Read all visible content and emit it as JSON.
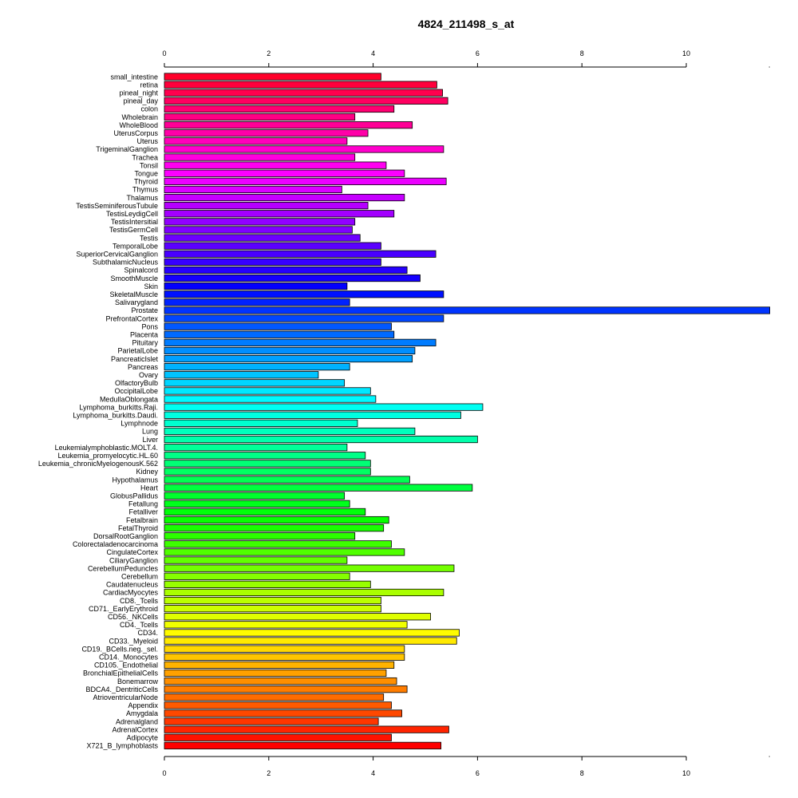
{
  "chart_data": {
    "type": "bar",
    "orientation": "horizontal",
    "title": "4824_211498_s_at",
    "xlabel": "",
    "ylabel": "",
    "xlim": [
      0,
      11.6
    ],
    "ticks": [
      "0",
      "2",
      "4",
      "6",
      "8",
      "10"
    ],
    "tick_values": [
      0,
      2,
      4,
      6,
      8,
      10
    ],
    "grid": false,
    "legend": "none",
    "categories": [
      "small_intestine",
      "retina",
      "pineal_night",
      "pineal_day",
      "colon",
      "Wholebrain",
      "WholeBlood",
      "UterusCorpus",
      "Uterus",
      "TrigeminalGanglion",
      "Trachea",
      "Tonsil",
      "Tongue",
      "Thyroid",
      "Thymus",
      "Thalamus",
      "TestisSeminiferousTubule",
      "TestisLeydigCell",
      "TestisIntersitial",
      "TestisGermCell",
      "Testis",
      "TemporalLobe",
      "SuperiorCervicalGanglion",
      "SubthalamicNucleus",
      "Spinalcord",
      "SmoothMuscle",
      "Skin",
      "SkeletalMuscle",
      "Salivarygland",
      "Prostate",
      "PrefrontalCortex",
      "Pons",
      "Placenta",
      "Pituitary",
      "ParietalLobe",
      "PancreaticIslet",
      "Pancreas",
      "Ovary",
      "OlfactoryBulb",
      "OccipitalLobe",
      "MedullaOblongata",
      "Lymphoma_burkitts.Raji.",
      "Lymphoma_burkitts.Daudi.",
      "Lymphnode",
      "Lung",
      "Liver",
      "Leukemialymphoblastic.MOLT.4.",
      "Leukemia_promyelocytic.HL.60",
      "Leukemia_chronicMyelogenousK.562",
      "Kidney",
      "Hypothalamus",
      "Heart",
      "GlobusPallidus",
      "Fetallung",
      "Fetalliver",
      "Fetalbrain",
      "FetalThyroid",
      "DorsalRootGanglion",
      "Colorectaladenocarcinoma",
      "CingulateCortex",
      "CiliaryGanglion",
      "CerebellumPeduncles",
      "Cerebellum",
      "Caudatenucleus",
      "CardiacMyocytes",
      "CD8._Tcells",
      "CD71._EarlyErythroid",
      "CD56._NKCells",
      "CD4._Tcells",
      "CD34.",
      "CD33._Myeloid",
      "CD19._BCells.neg._sel.",
      "CD14._Monocytes",
      "CD105._Endothelial",
      "BronchialEpithelialCells",
      "Bonemarrow",
      "BDCA4._DentriticCells",
      "AtrioventricularNode",
      "Appendix",
      "Amygdala",
      "Adrenalgland",
      "AdrenalCortex",
      "Adipocyte",
      "X721_B_lymphoblasts"
    ],
    "values": [
      4.15,
      5.22,
      5.33,
      5.43,
      4.4,
      3.65,
      4.75,
      3.9,
      3.5,
      5.35,
      3.65,
      4.25,
      4.6,
      5.4,
      3.4,
      4.6,
      3.9,
      4.4,
      3.65,
      3.6,
      3.75,
      4.15,
      5.2,
      4.15,
      4.65,
      4.9,
      3.5,
      5.35,
      3.55,
      11.6,
      5.35,
      4.35,
      4.4,
      5.2,
      4.8,
      4.75,
      3.55,
      2.95,
      3.45,
      3.95,
      4.05,
      6.1,
      5.68,
      3.7,
      4.8,
      6.0,
      3.5,
      3.85,
      3.95,
      3.95,
      4.7,
      5.9,
      3.45,
      3.55,
      3.85,
      4.3,
      4.2,
      3.65,
      4.35,
      4.6,
      3.5,
      5.55,
      3.55,
      3.95,
      5.35,
      4.15,
      4.15,
      5.1,
      4.65,
      5.65,
      5.6,
      4.6,
      4.6,
      4.4,
      4.25,
      4.45,
      4.65,
      4.2,
      4.35,
      4.55,
      4.1,
      5.45,
      4.35,
      5.3
    ]
  }
}
